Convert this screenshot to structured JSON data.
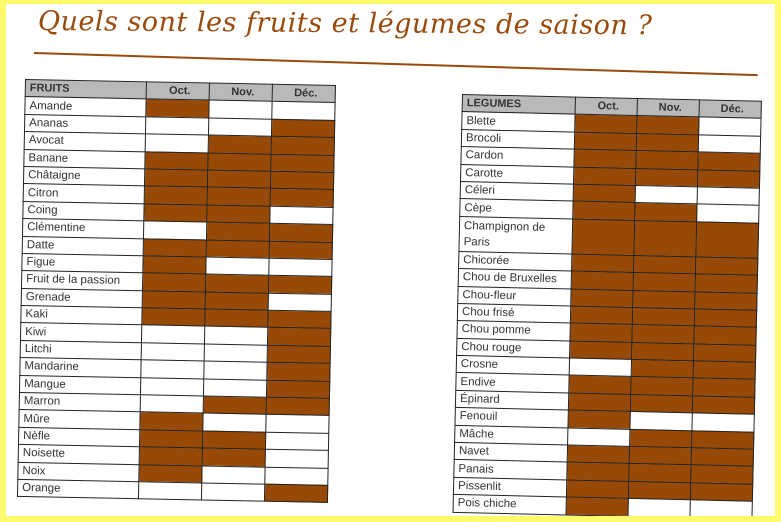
{
  "title": "Quels sont les fruits et légumes de saison ?",
  "colors": {
    "in_season": "#974a07",
    "title": "#9a4a0c",
    "header_bg": "#b9b9b9",
    "frame": "#fdfa6e"
  },
  "fruits": {
    "header": [
      "FRUITS",
      "Oct.",
      "Nov.",
      "Déc."
    ],
    "rows": [
      {
        "name": "Amande",
        "season": [
          1,
          0,
          0
        ]
      },
      {
        "name": "Ananas",
        "season": [
          0,
          0,
          1
        ]
      },
      {
        "name": "Avocat",
        "season": [
          0,
          1,
          1
        ]
      },
      {
        "name": "Banane",
        "season": [
          1,
          1,
          1
        ]
      },
      {
        "name": "Châtaigne",
        "season": [
          1,
          1,
          1
        ]
      },
      {
        "name": "Citron",
        "season": [
          1,
          1,
          1
        ]
      },
      {
        "name": "Coing",
        "season": [
          1,
          1,
          0
        ]
      },
      {
        "name": "Clémentine",
        "season": [
          0,
          1,
          1
        ]
      },
      {
        "name": "Datte",
        "season": [
          1,
          1,
          1
        ]
      },
      {
        "name": "Figue",
        "season": [
          1,
          0,
          0
        ]
      },
      {
        "name": "Fruit de la passion",
        "season": [
          1,
          1,
          1
        ]
      },
      {
        "name": "Grenade",
        "season": [
          1,
          1,
          0
        ]
      },
      {
        "name": "Kaki",
        "season": [
          1,
          1,
          1
        ]
      },
      {
        "name": "Kiwi",
        "season": [
          0,
          0,
          1
        ]
      },
      {
        "name": "Litchi",
        "season": [
          0,
          0,
          1
        ]
      },
      {
        "name": "Mandarine",
        "season": [
          0,
          0,
          1
        ]
      },
      {
        "name": "Mangue",
        "season": [
          0,
          0,
          1
        ]
      },
      {
        "name": "Marron",
        "season": [
          0,
          1,
          1
        ]
      },
      {
        "name": "Mûre",
        "season": [
          1,
          0,
          0
        ]
      },
      {
        "name": "Nèfle",
        "season": [
          1,
          1,
          0
        ]
      },
      {
        "name": "Noisette",
        "season": [
          1,
          1,
          0
        ]
      },
      {
        "name": "Noix",
        "season": [
          1,
          0,
          0
        ]
      },
      {
        "name": "Orange",
        "season": [
          0,
          0,
          1
        ]
      }
    ]
  },
  "legumes": {
    "header": [
      "LEGUMES",
      "Oct.",
      "Nov.",
      "Déc."
    ],
    "rows": [
      {
        "name": "Blette",
        "season": [
          1,
          1,
          0
        ]
      },
      {
        "name": "Brocoli",
        "season": [
          1,
          1,
          0
        ]
      },
      {
        "name": "Cardon",
        "season": [
          1,
          1,
          1
        ]
      },
      {
        "name": "Carotte",
        "season": [
          1,
          1,
          1
        ]
      },
      {
        "name": "Céleri",
        "season": [
          1,
          0,
          0
        ]
      },
      {
        "name": "Cèpe",
        "season": [
          1,
          1,
          0
        ]
      },
      {
        "name": "Champignon de Paris",
        "season": [
          1,
          1,
          1
        ]
      },
      {
        "name": "Chicorée",
        "season": [
          1,
          1,
          1
        ]
      },
      {
        "name": "Chou de Bruxelles",
        "season": [
          1,
          1,
          1
        ]
      },
      {
        "name": "Chou-fleur",
        "season": [
          1,
          1,
          1
        ]
      },
      {
        "name": "Chou frisé",
        "season": [
          1,
          1,
          1
        ]
      },
      {
        "name": "Chou pomme",
        "season": [
          1,
          1,
          1
        ]
      },
      {
        "name": "Chou rouge",
        "season": [
          1,
          1,
          1
        ]
      },
      {
        "name": "Crosne",
        "season": [
          0,
          1,
          1
        ]
      },
      {
        "name": "Endive",
        "season": [
          1,
          1,
          1
        ]
      },
      {
        "name": "Épinard",
        "season": [
          1,
          1,
          1
        ]
      },
      {
        "name": "Fenouil",
        "season": [
          1,
          0,
          0
        ]
      },
      {
        "name": "Mâche",
        "season": [
          0,
          1,
          1
        ]
      },
      {
        "name": "Navet",
        "season": [
          1,
          1,
          1
        ]
      },
      {
        "name": "Panais",
        "season": [
          1,
          1,
          1
        ]
      },
      {
        "name": "Pissenlit",
        "season": [
          1,
          1,
          1
        ]
      },
      {
        "name": "Pois chiche",
        "season": [
          1,
          0,
          0
        ]
      }
    ]
  }
}
